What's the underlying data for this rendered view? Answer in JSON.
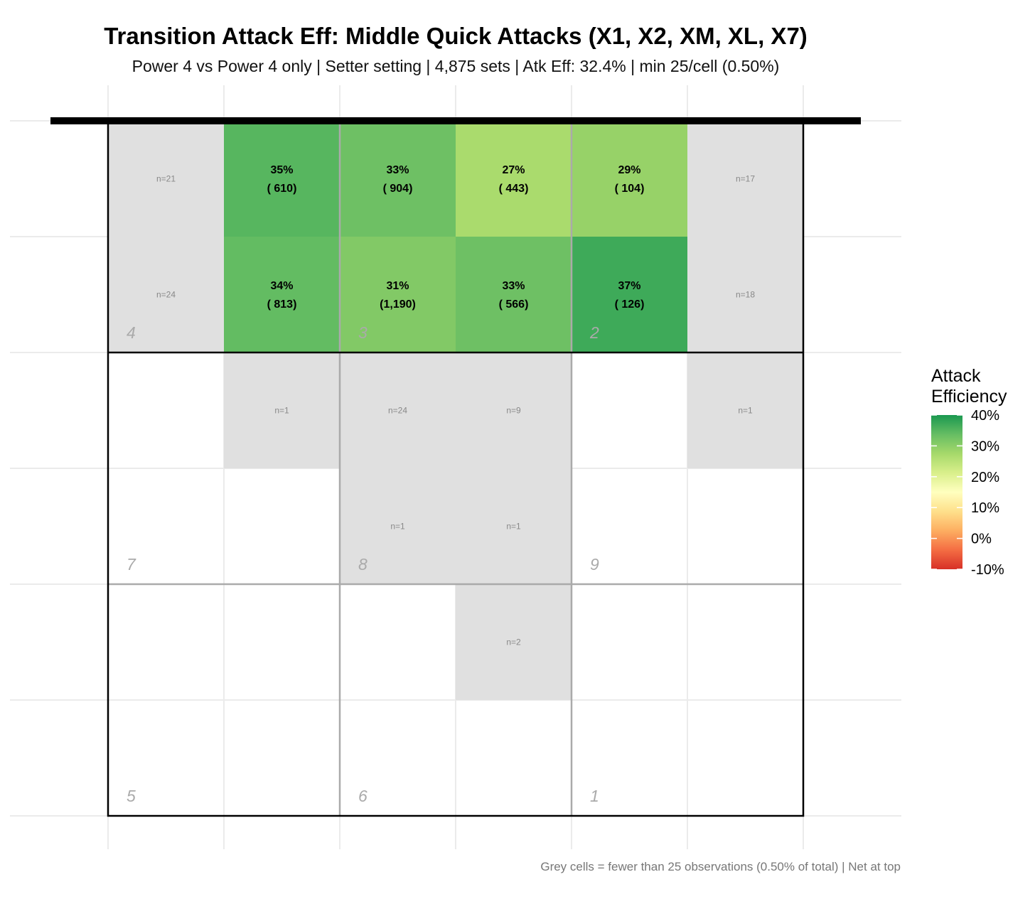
{
  "title": "Transition Attack Eff: Middle Quick Attacks (X1, X2, XM, XL, X7)",
  "subtitle": "Power 4 vs Power 4 only | Setter setting | 4,875 sets | Atk Eff: 32.4% | min 25/cell (0.50%)",
  "caption": "Grey cells = fewer than 25 observations (0.50% of total) | Net at top",
  "colors": {
    "grey_cell": "#e0e0e0",
    "net": "#000000",
    "scale": [
      "#d73027",
      "#f46d43",
      "#fdae61",
      "#fee08b",
      "#ffffbf",
      "#d9ef8b",
      "#a6d96a",
      "#66bd63",
      "#1a9850"
    ]
  },
  "chart_data": {
    "type": "heatmap",
    "columns": 6,
    "rows": 6,
    "fill_range": [
      -10,
      40
    ],
    "cells": [
      {
        "col": 0,
        "row": 0,
        "n": 21,
        "label": "n=21"
      },
      {
        "col": 1,
        "row": 0,
        "eff": 35,
        "n": 610,
        "pct": "35%",
        "count": "(  610)"
      },
      {
        "col": 2,
        "row": 0,
        "eff": 33,
        "n": 904,
        "pct": "33%",
        "count": "(  904)"
      },
      {
        "col": 3,
        "row": 0,
        "eff": 27,
        "n": 443,
        "pct": "27%",
        "count": "(  443)"
      },
      {
        "col": 4,
        "row": 0,
        "eff": 29,
        "n": 104,
        "pct": "29%",
        "count": "(  104)"
      },
      {
        "col": 5,
        "row": 0,
        "n": 17,
        "label": "n=17"
      },
      {
        "col": 0,
        "row": 1,
        "n": 24,
        "label": "n=24"
      },
      {
        "col": 1,
        "row": 1,
        "eff": 34,
        "n": 813,
        "pct": "34%",
        "count": "(  813)"
      },
      {
        "col": 2,
        "row": 1,
        "eff": 31,
        "n": 1190,
        "pct": "31%",
        "count": "(1,190)"
      },
      {
        "col": 3,
        "row": 1,
        "eff": 33,
        "n": 566,
        "pct": "33%",
        "count": "(  566)"
      },
      {
        "col": 4,
        "row": 1,
        "eff": 37,
        "n": 126,
        "pct": "37%",
        "count": "(  126)"
      },
      {
        "col": 5,
        "row": 1,
        "n": 18,
        "label": "n=18"
      },
      {
        "col": 1,
        "row": 2,
        "n": 1,
        "label": "n=1"
      },
      {
        "col": 2,
        "row": 2,
        "n": 24,
        "label": "n=24"
      },
      {
        "col": 3,
        "row": 2,
        "n": 9,
        "label": "n=9"
      },
      {
        "col": 5,
        "row": 2,
        "n": 1,
        "label": "n=1"
      },
      {
        "col": 2,
        "row": 3,
        "n": 1,
        "label": "n=1"
      },
      {
        "col": 3,
        "row": 3,
        "n": 1,
        "label": "n=1"
      },
      {
        "col": 3,
        "row": 4,
        "n": 2,
        "label": "n=2"
      }
    ],
    "zones": [
      {
        "label": "4",
        "col": 0,
        "row": 1
      },
      {
        "label": "3",
        "col": 2,
        "row": 1
      },
      {
        "label": "2",
        "col": 4,
        "row": 1
      },
      {
        "label": "7",
        "col": 0,
        "row": 3
      },
      {
        "label": "8",
        "col": 2,
        "row": 3
      },
      {
        "label": "9",
        "col": 4,
        "row": 3
      },
      {
        "label": "5",
        "col": 0,
        "row": 5
      },
      {
        "label": "6",
        "col": 2,
        "row": 5
      },
      {
        "label": "1",
        "col": 4,
        "row": 5
      }
    ],
    "legend": {
      "title_lines": [
        "Attack",
        "Efficiency"
      ],
      "ticks": [
        {
          "value": 40,
          "label": "40%"
        },
        {
          "value": 30,
          "label": "30%"
        },
        {
          "value": 20,
          "label": "20%"
        },
        {
          "value": 10,
          "label": "10%"
        },
        {
          "value": 0,
          "label": "0%"
        },
        {
          "value": -10,
          "label": "-10%"
        }
      ],
      "position": "right"
    },
    "grid": true
  }
}
